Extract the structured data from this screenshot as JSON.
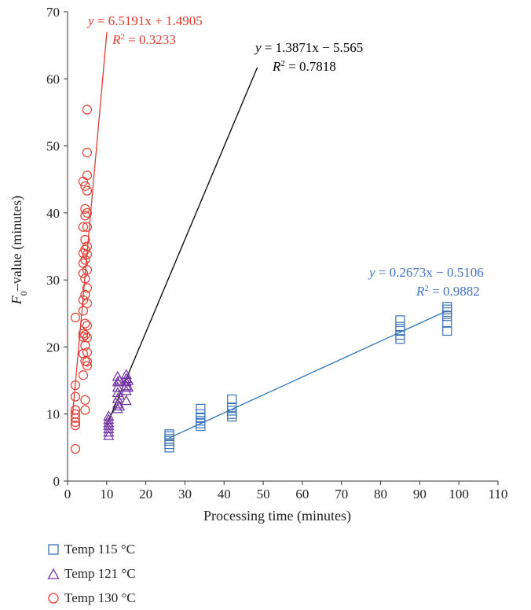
{
  "chart_data": {
    "type": "scatter",
    "xlabel": "Processing time (minutes)",
    "ylabel": {
      "main": "F",
      "sub": "0",
      "rest": "–value (minutes)"
    },
    "xlim": [
      0,
      110
    ],
    "ylim": [
      0,
      70
    ],
    "xticks": [
      0,
      10,
      20,
      30,
      40,
      50,
      60,
      70,
      80,
      90,
      100,
      110
    ],
    "yticks": [
      0,
      10,
      20,
      30,
      40,
      50,
      60,
      70
    ],
    "grid": false,
    "legend_position": "bottom-left",
    "series": [
      {
        "name": "Temp 115 °C",
        "marker": "square",
        "color": "#3b73b9",
        "points": [
          [
            26,
            5
          ],
          [
            26,
            5.5
          ],
          [
            26,
            6
          ],
          [
            26,
            6.3
          ],
          [
            26,
            6.7
          ],
          [
            26,
            7
          ],
          [
            34,
            8.2
          ],
          [
            34,
            8.6
          ],
          [
            34,
            9
          ],
          [
            34,
            9.4
          ],
          [
            34,
            10
          ],
          [
            34,
            10.8
          ],
          [
            42,
            9.6
          ],
          [
            42,
            10
          ],
          [
            42,
            10.5
          ],
          [
            42,
            11
          ],
          [
            42,
            12.2
          ],
          [
            85,
            21.2
          ],
          [
            85,
            21.8
          ],
          [
            85,
            22.4
          ],
          [
            85,
            23
          ],
          [
            85,
            24
          ],
          [
            97,
            22.4
          ],
          [
            97,
            23.6
          ],
          [
            97,
            24.6
          ],
          [
            97,
            25.2
          ],
          [
            97,
            25.6
          ],
          [
            97,
            26
          ]
        ],
        "trendline": {
          "slope": 0.2673,
          "intercept": -0.5106,
          "x_range": [
            26,
            97
          ],
          "equation": "= 0.2673x − 0.5106",
          "r2": "= 0.9882"
        }
      },
      {
        "name": "Temp 121 °C",
        "marker": "triangle",
        "color": "#7030a0",
        "points": [
          [
            10.5,
            6.8
          ],
          [
            10.5,
            7.3
          ],
          [
            10.5,
            7.8
          ],
          [
            10.5,
            8.3
          ],
          [
            10.5,
            8.7
          ],
          [
            10.5,
            9.2
          ],
          [
            10.5,
            9.7
          ],
          [
            12.8,
            10.8
          ],
          [
            12.8,
            11.5
          ],
          [
            12.8,
            12.3
          ],
          [
            12.8,
            13.2
          ],
          [
            12.8,
            14
          ],
          [
            12.8,
            14.8
          ],
          [
            12.8,
            15.6
          ],
          [
            13.3,
            11.2
          ],
          [
            13.3,
            12.8
          ],
          [
            13.3,
            15
          ],
          [
            15,
            12
          ],
          [
            15,
            13.5
          ],
          [
            15,
            14.2
          ],
          [
            15,
            14.8
          ],
          [
            15,
            15.3
          ],
          [
            15,
            15.9
          ],
          [
            15.5,
            14
          ],
          [
            15.5,
            15
          ]
        ],
        "trendline": {
          "slope": 1.3871,
          "intercept": -5.565,
          "x_range": [
            10,
            48.5
          ],
          "equation": "= 1.3871x − 5.565",
          "r2": "= 0.7818"
        }
      },
      {
        "name": "Temp 130 °C",
        "marker": "circle",
        "color": "#e03c31",
        "points": [
          [
            2,
            4.8
          ],
          [
            2,
            8.3
          ],
          [
            2,
            8.8
          ],
          [
            2,
            9.4
          ],
          [
            2,
            10
          ],
          [
            2,
            10.6
          ],
          [
            2,
            12.6
          ],
          [
            2,
            14.3
          ],
          [
            2,
            24.4
          ],
          [
            4,
            15.8
          ],
          [
            4,
            19
          ],
          [
            4,
            21.5
          ],
          [
            4,
            22
          ],
          [
            4,
            25.4
          ],
          [
            4,
            27
          ],
          [
            4,
            31
          ],
          [
            4,
            32.5
          ],
          [
            4,
            34
          ],
          [
            4,
            37.9
          ],
          [
            4,
            44.7
          ],
          [
            4.5,
            10.6
          ],
          [
            4.5,
            12.1
          ],
          [
            4.5,
            17.9
          ],
          [
            4.5,
            20.2
          ],
          [
            4.5,
            21.8
          ],
          [
            4.5,
            23.5
          ],
          [
            4.5,
            27.8
          ],
          [
            4.5,
            30.2
          ],
          [
            4.5,
            33
          ],
          [
            4.5,
            34.5
          ],
          [
            4.5,
            36
          ],
          [
            4.5,
            39.6
          ],
          [
            4.5,
            40.6
          ],
          [
            4.5,
            44
          ],
          [
            5,
            17.2
          ],
          [
            5,
            17.8
          ],
          [
            5,
            19.2
          ],
          [
            5,
            21.4
          ],
          [
            5,
            23.2
          ],
          [
            5,
            26.5
          ],
          [
            5,
            28.8
          ],
          [
            5,
            31.5
          ],
          [
            5,
            33.8
          ],
          [
            5,
            35
          ],
          [
            5,
            37.9
          ],
          [
            5,
            40
          ],
          [
            5,
            43.3
          ],
          [
            5,
            45.6
          ],
          [
            5,
            49
          ],
          [
            5,
            55.4
          ]
        ],
        "trendline": {
          "slope": 6.5191,
          "intercept": 1.4905,
          "x_range": [
            1.3,
            10.05
          ],
          "equation": "= 6.5191x + 1.4905",
          "r2": "= 0.3233"
        }
      }
    ],
    "trend_colors": {
      "115": "#2e75b6",
      "121": "#000000",
      "130": "#e03c31"
    }
  }
}
